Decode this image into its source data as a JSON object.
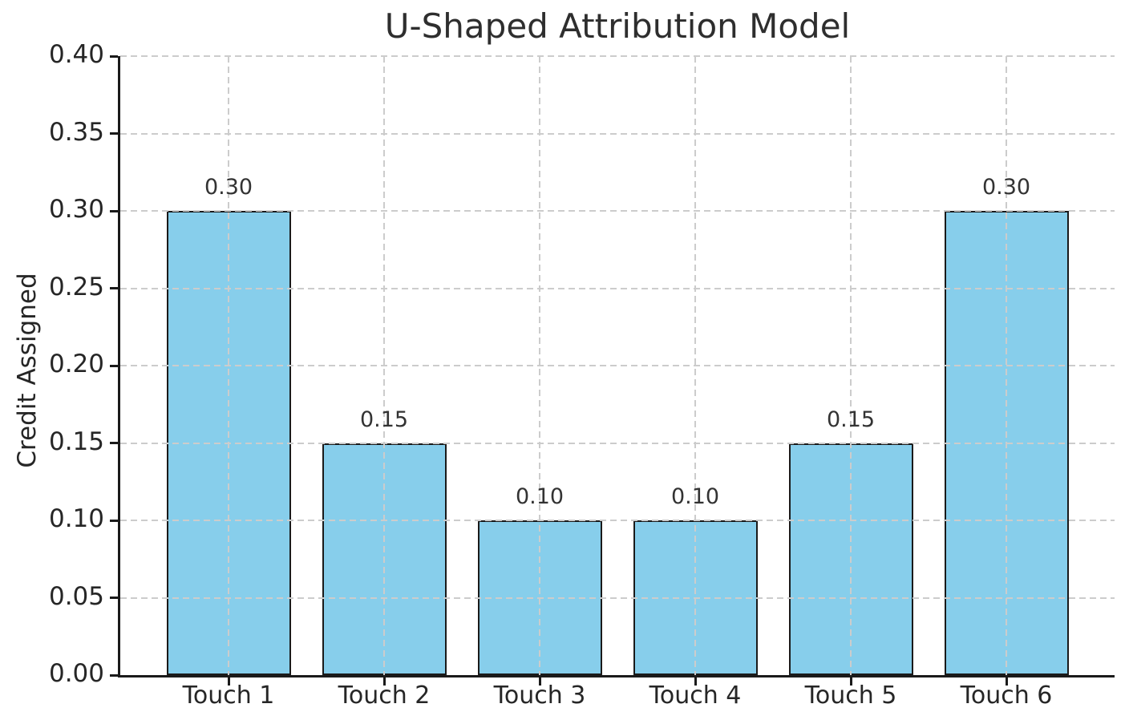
{
  "chart_data": {
    "type": "bar",
    "title": "U-Shaped Attribution Model",
    "xlabel": "",
    "ylabel": "Credit Assigned",
    "categories": [
      "Touch 1",
      "Touch 2",
      "Touch 3",
      "Touch 4",
      "Touch 5",
      "Touch 6"
    ],
    "values": [
      0.3,
      0.15,
      0.1,
      0.1,
      0.15,
      0.3
    ],
    "bar_labels": [
      "0.30",
      "0.15",
      "0.10",
      "0.10",
      "0.15",
      "0.30"
    ],
    "ylim": [
      0.0,
      0.4
    ],
    "ytick_step": 0.05,
    "ytick_labels": [
      "0.00",
      "0.05",
      "0.10",
      "0.15",
      "0.20",
      "0.25",
      "0.30",
      "0.35",
      "0.40"
    ],
    "grid": "dashed, horizontal and vertical, drawn above bars",
    "legend_position": "none",
    "colors": {
      "bar_fill": "#87CEEB",
      "bar_edge": "#1a1a1a",
      "grid": "#cccccc",
      "spine": "#1a1a1a",
      "text": "#262626",
      "title_text": "#2e2e2e",
      "background": "#ffffff"
    }
  }
}
